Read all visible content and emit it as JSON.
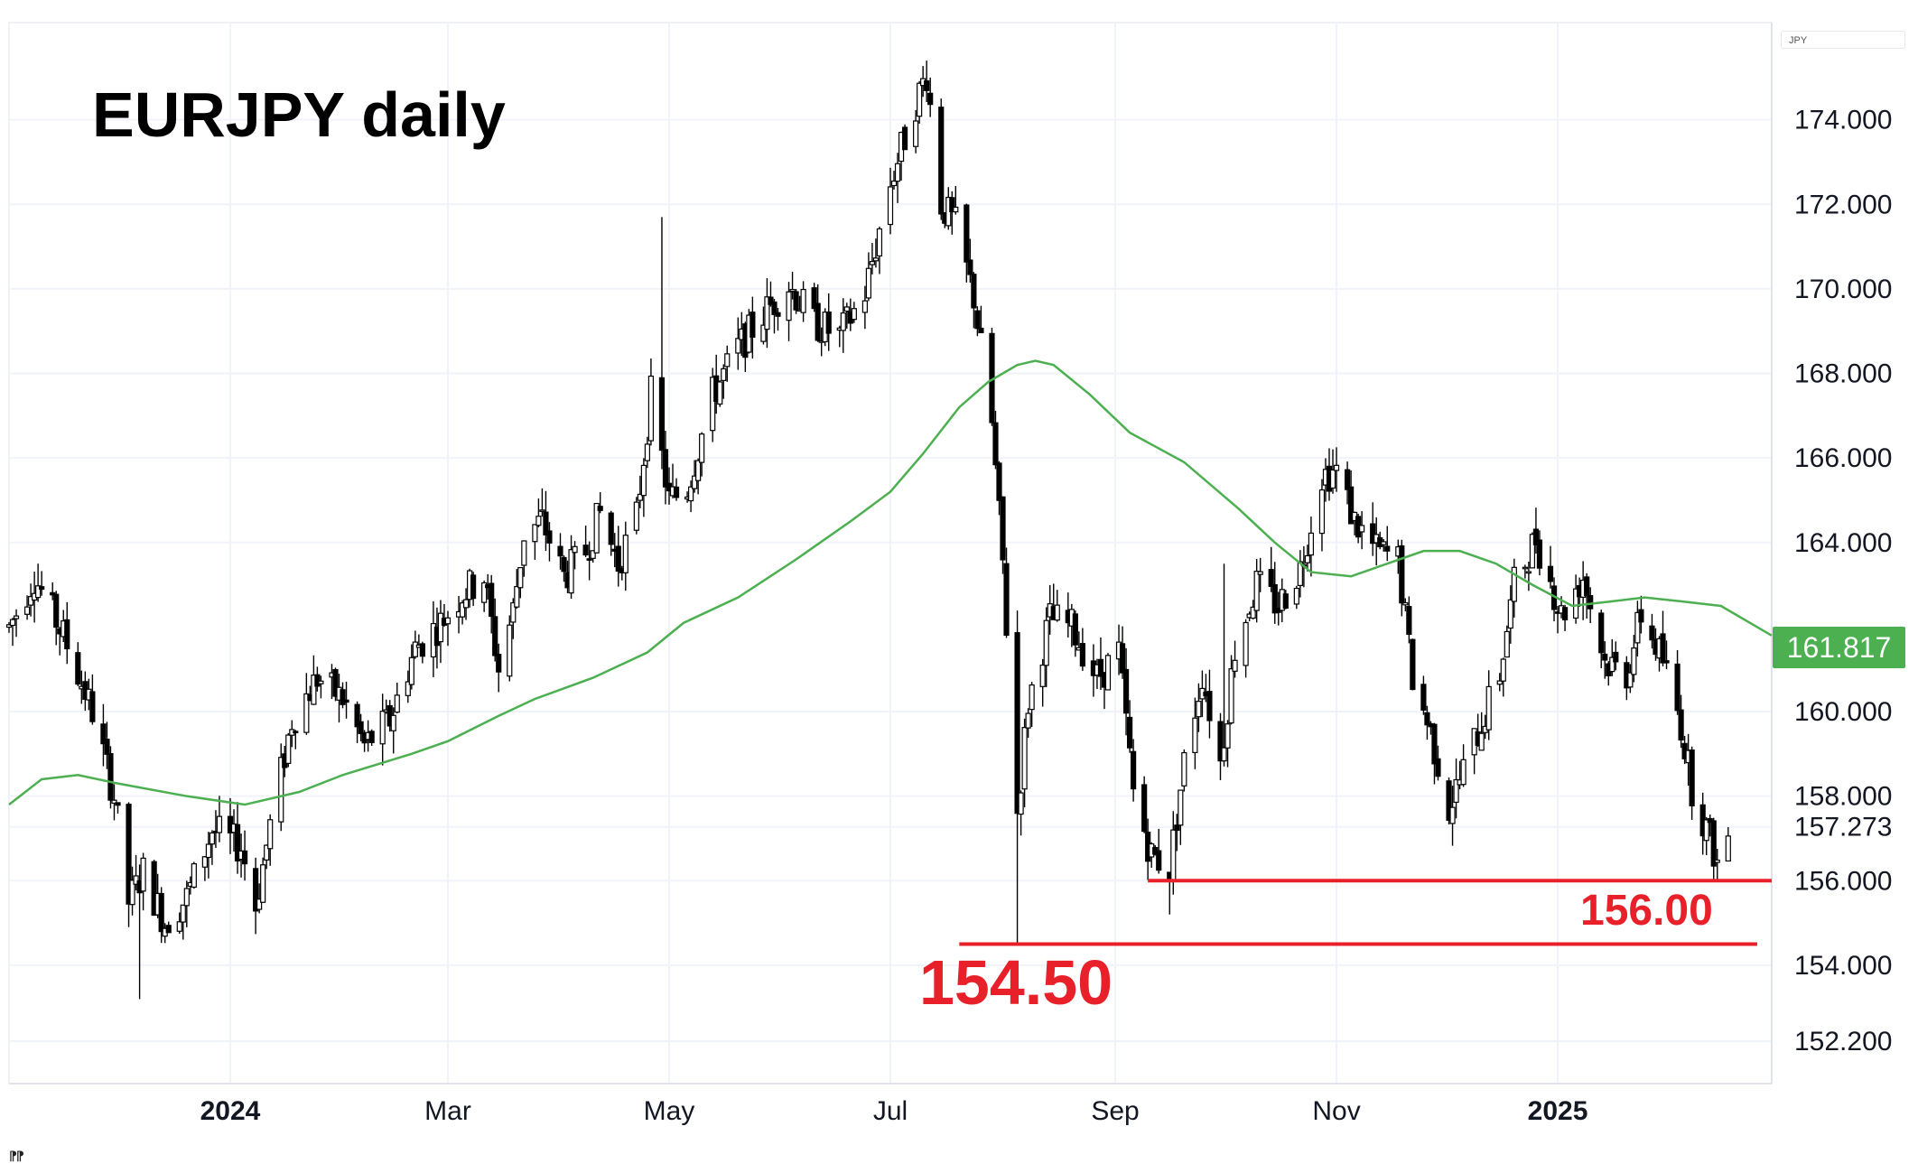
{
  "chart_data": {
    "type": "candlestick",
    "title": "EURJPY daily",
    "currency": "JPY",
    "last_price": "161.817",
    "y_ticks": [
      "174.000",
      "172.000",
      "170.000",
      "168.000",
      "166.000",
      "164.000",
      "160.000",
      "158.000",
      "157.273",
      "156.000",
      "154.000",
      "152.200"
    ],
    "x_ticks": [
      {
        "label": "2024",
        "bold": true
      },
      {
        "label": "Mar",
        "bold": false
      },
      {
        "label": "May",
        "bold": false
      },
      {
        "label": "Jul",
        "bold": false
      },
      {
        "label": "Sep",
        "bold": false
      },
      {
        "label": "Nov",
        "bold": false
      },
      {
        "label": "2025",
        "bold": true
      }
    ],
    "ylim": [
      151.2,
      176.3
    ],
    "x_range": [
      "2023-11-01",
      "2025-03-01"
    ],
    "moving_average": {
      "color": "#4caf50",
      "points": [
        [
          "2023-11-01",
          157.8
        ],
        [
          "2023-11-10",
          158.4
        ],
        [
          "2023-11-20",
          158.5
        ],
        [
          "2023-12-01",
          158.3
        ],
        [
          "2023-12-20",
          158.0
        ],
        [
          "2024-01-05",
          157.8
        ],
        [
          "2024-01-20",
          158.1
        ],
        [
          "2024-02-01",
          158.5
        ],
        [
          "2024-02-20",
          159.0
        ],
        [
          "2024-03-01",
          159.3
        ],
        [
          "2024-03-15",
          159.9
        ],
        [
          "2024-03-25",
          160.3
        ],
        [
          "2024-04-10",
          160.8
        ],
        [
          "2024-04-25",
          161.4
        ],
        [
          "2024-05-05",
          162.1
        ],
        [
          "2024-05-20",
          162.7
        ],
        [
          "2024-06-05",
          163.6
        ],
        [
          "2024-06-20",
          164.5
        ],
        [
          "2024-07-01",
          165.2
        ],
        [
          "2024-07-10",
          166.1
        ],
        [
          "2024-07-20",
          167.2
        ],
        [
          "2024-07-28",
          167.8
        ],
        [
          "2024-08-05",
          168.2
        ],
        [
          "2024-08-10",
          168.3
        ],
        [
          "2024-08-15",
          168.2
        ],
        [
          "2024-08-25",
          167.5
        ],
        [
          "2024-09-05",
          166.6
        ],
        [
          "2024-09-20",
          165.9
        ],
        [
          "2024-10-05",
          164.8
        ],
        [
          "2024-10-15",
          164.0
        ],
        [
          "2024-10-25",
          163.3
        ],
        [
          "2024-11-05",
          163.2
        ],
        [
          "2024-11-15",
          163.5
        ],
        [
          "2024-11-25",
          163.8
        ],
        [
          "2024-12-05",
          163.8
        ],
        [
          "2024-12-15",
          163.5
        ],
        [
          "2024-12-25",
          163.0
        ],
        [
          "2025-01-05",
          162.5
        ],
        [
          "2025-01-15",
          162.6
        ],
        [
          "2025-01-25",
          162.7
        ],
        [
          "2025-02-05",
          162.6
        ],
        [
          "2025-02-15",
          162.5
        ],
        [
          "2025-02-25",
          162.0
        ],
        [
          "2025-03-01",
          161.8
        ]
      ]
    },
    "price_path": [
      [
        "2023-11-01",
        162.0
      ],
      [
        "2023-11-08",
        163.2
      ],
      [
        "2023-11-16",
        161.8
      ],
      [
        "2023-11-24",
        160.0
      ],
      [
        "2023-11-30",
        158.0
      ],
      [
        "2023-12-04",
        155.5
      ],
      [
        "2023-12-08",
        156.2
      ],
      [
        "2023-12-14",
        155.0
      ],
      [
        "2023-12-20",
        155.6
      ],
      [
        "2023-12-27",
        157.2
      ],
      [
        "2024-01-04",
        156.8
      ],
      [
        "2024-01-08",
        155.4
      ],
      [
        "2024-01-12",
        157.3
      ],
      [
        "2024-01-18",
        159.8
      ],
      [
        "2024-01-25",
        160.8
      ],
      [
        "2024-02-01",
        160.3
      ],
      [
        "2024-02-07",
        159.2
      ],
      [
        "2024-02-14",
        159.8
      ],
      [
        "2024-02-21",
        161.5
      ],
      [
        "2024-02-28",
        162.1
      ],
      [
        "2024-03-05",
        162.8
      ],
      [
        "2024-03-11",
        163.2
      ],
      [
        "2024-03-15",
        161.0
      ],
      [
        "2024-03-19",
        162.4
      ],
      [
        "2024-03-22",
        164.2
      ],
      [
        "2024-03-27",
        164.5
      ],
      [
        "2024-04-02",
        163.2
      ],
      [
        "2024-04-08",
        163.8
      ],
      [
        "2024-04-12",
        164.7
      ],
      [
        "2024-04-17",
        163.5
      ],
      [
        "2024-04-22",
        164.6
      ],
      [
        "2024-04-26",
        167.5
      ],
      [
        "2024-05-01",
        165.0
      ],
      [
        "2024-05-06",
        165.3
      ],
      [
        "2024-05-13",
        167.5
      ],
      [
        "2024-05-20",
        168.6
      ],
      [
        "2024-05-27",
        169.4
      ],
      [
        "2024-06-03",
        170.1
      ],
      [
        "2024-06-10",
        169.2
      ],
      [
        "2024-06-17",
        168.9
      ],
      [
        "2024-06-24",
        169.9
      ],
      [
        "2024-07-01",
        172.5
      ],
      [
        "2024-07-08",
        174.4
      ],
      [
        "2024-07-11",
        175.1
      ],
      [
        "2024-07-15",
        172.0
      ],
      [
        "2024-07-19",
        171.5
      ],
      [
        "2024-07-24",
        169.8
      ],
      [
        "2024-07-29",
        166.8
      ],
      [
        "2024-08-01",
        163.5
      ],
      [
        "2024-08-05",
        157.6
      ],
      [
        "2024-08-08",
        160.2
      ],
      [
        "2024-08-14",
        162.2
      ],
      [
        "2024-08-20",
        162.0
      ],
      [
        "2024-08-27",
        160.8
      ],
      [
        "2024-09-02",
        161.4
      ],
      [
        "2024-09-06",
        158.1
      ],
      [
        "2024-09-11",
        156.6
      ],
      [
        "2024-09-16",
        156.3
      ],
      [
        "2024-09-20",
        158.8
      ],
      [
        "2024-09-25",
        160.9
      ],
      [
        "2024-09-30",
        158.8
      ],
      [
        "2024-10-04",
        161.5
      ],
      [
        "2024-10-10",
        163.0
      ],
      [
        "2024-10-16",
        162.5
      ],
      [
        "2024-10-22",
        163.4
      ],
      [
        "2024-10-28",
        165.6
      ],
      [
        "2024-11-01",
        165.7
      ],
      [
        "2024-11-06",
        164.5
      ],
      [
        "2024-11-12",
        163.8
      ],
      [
        "2024-11-18",
        163.6
      ],
      [
        "2024-11-22",
        160.8
      ],
      [
        "2024-11-27",
        159.5
      ],
      [
        "2024-12-02",
        157.7
      ],
      [
        "2024-12-05",
        158.4
      ],
      [
        "2024-12-10",
        159.5
      ],
      [
        "2024-12-16",
        160.9
      ],
      [
        "2024-12-20",
        163.0
      ],
      [
        "2024-12-26",
        164.1
      ],
      [
        "2025-01-02",
        162.3
      ],
      [
        "2025-01-08",
        163.2
      ],
      [
        "2025-01-14",
        161.2
      ],
      [
        "2025-01-20",
        160.9
      ],
      [
        "2025-01-24",
        162.3
      ],
      [
        "2025-01-30",
        161.2
      ],
      [
        "2025-02-04",
        159.7
      ],
      [
        "2025-02-07",
        158.2
      ],
      [
        "2025-02-12",
        157.0
      ],
      [
        "2025-02-14",
        156.4
      ],
      [
        "2025-02-17",
        157.1
      ]
    ],
    "annotations": [
      {
        "label": "156.00",
        "value": 156.0,
        "from": "2024-09-10",
        "to": "2025-03-01",
        "color": "#e8202a"
      },
      {
        "label": "154.50",
        "value": 154.5,
        "from": "2024-07-20",
        "to": "2025-02-25",
        "color": "#e8202a"
      }
    ],
    "colors": {
      "up": "#ffffff",
      "down": "#000000",
      "grid": "#f0f3fa",
      "axis": "#e0e3eb"
    },
    "legend": "none",
    "grid": true
  }
}
